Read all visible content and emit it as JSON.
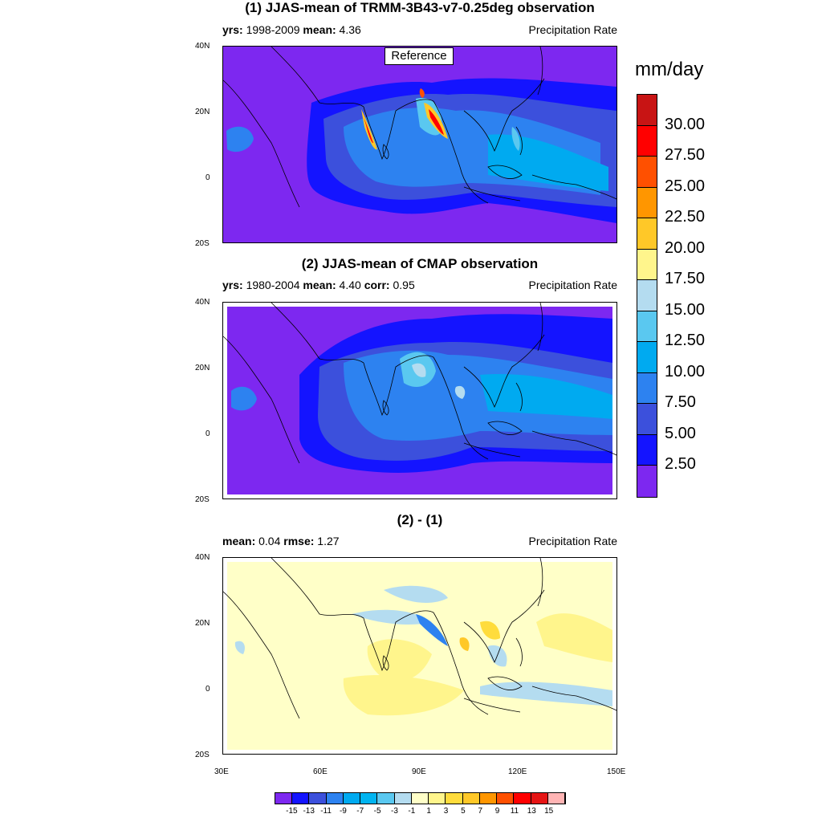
{
  "panels": [
    {
      "title": "(1) JJAS-mean of TRMM-3B43-v7-0.25deg observation",
      "info": [
        {
          "k": "yrs:",
          "v": "1998-2009"
        },
        {
          "k": "mean:",
          "v": "4.36"
        }
      ],
      "variable": "Precipitation Rate",
      "label_box": "Reference"
    },
    {
      "title": "(2) JJAS-mean of CMAP observation",
      "info": [
        {
          "k": "yrs:",
          "v": "1980-2004"
        },
        {
          "k": "mean:",
          "v": "4.40"
        },
        {
          "k": "corr:",
          "v": "0.95"
        }
      ],
      "variable": "Precipitation Rate"
    },
    {
      "title": "(2) - (1)",
      "info": [
        {
          "k": "mean:",
          "v": "0.04"
        },
        {
          "k": "rmse:",
          "v": "1.27"
        }
      ],
      "variable": "Precipitation Rate"
    }
  ],
  "axes": {
    "lat_labels": [
      "40N",
      "20N",
      "0",
      "20S"
    ],
    "lon_labels": [
      "30E",
      "60E",
      "90E",
      "120E",
      "150E"
    ]
  },
  "colorbar": {
    "units": "mm/day",
    "labels": [
      "30.00",
      "27.50",
      "25.00",
      "22.50",
      "20.00",
      "17.50",
      "15.00",
      "12.50",
      "10.00",
      "7.50",
      "5.00",
      "2.50"
    ],
    "colors": [
      "#c81414",
      "#ff0000",
      "#ff5000",
      "#ff9600",
      "#ffc828",
      "#fff58c",
      "#b4dcf0",
      "#5ac8f0",
      "#00aaf0",
      "#2d82f0",
      "#3c50dc",
      "#1414ff",
      "#7d28f0"
    ]
  },
  "diff_colorbar": {
    "labels": [
      "-15",
      "-13",
      "-11",
      "-9",
      "-7",
      "-5",
      "-3",
      "-1",
      "1",
      "3",
      "5",
      "7",
      "9",
      "11",
      "13",
      "15"
    ],
    "colors": [
      "#7d28f0",
      "#1414ff",
      "#3c50dc",
      "#2d82f0",
      "#00aaf0",
      "#00b4f0",
      "#5ac8f0",
      "#b4dcf0",
      "#ffffc8",
      "#fff58c",
      "#ffdc3c",
      "#ffc828",
      "#ff9600",
      "#ff5000",
      "#ff0000",
      "#e61414",
      "#ffb4b4"
    ]
  }
}
